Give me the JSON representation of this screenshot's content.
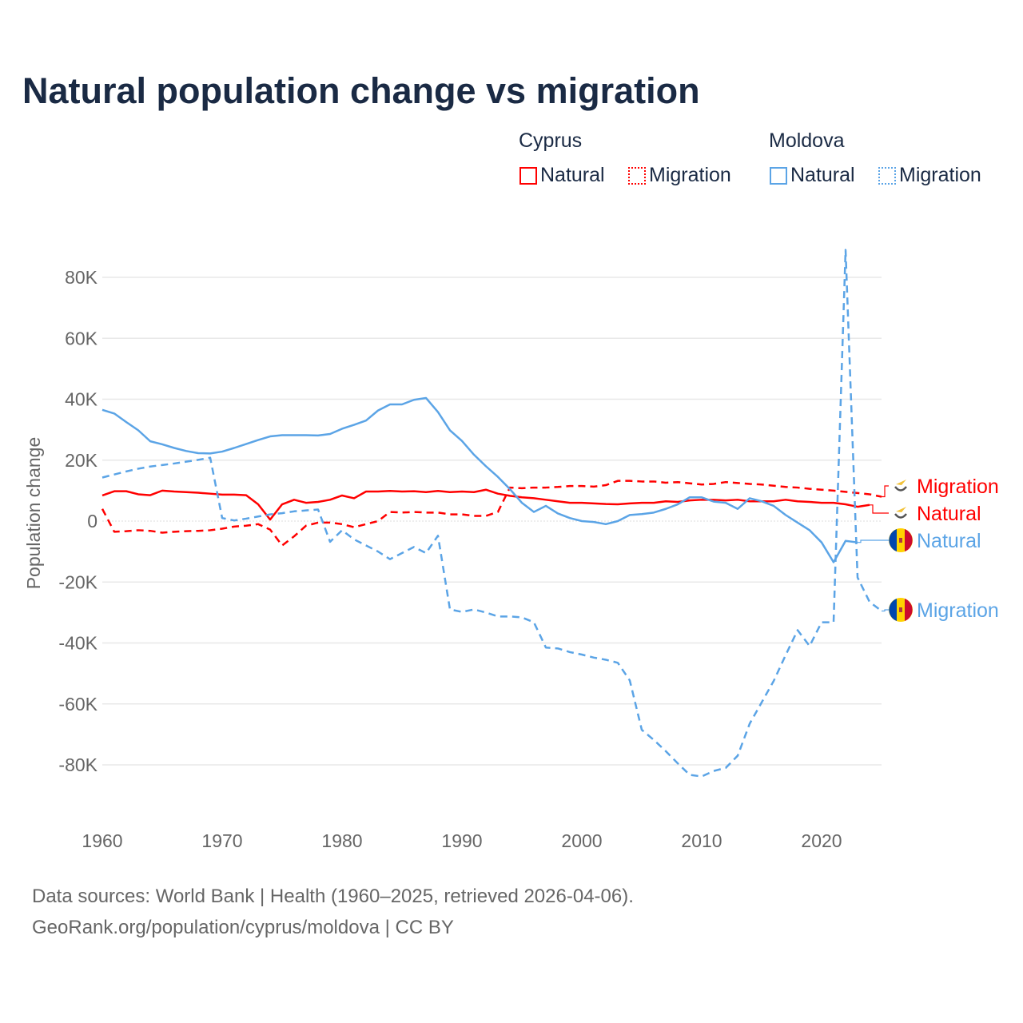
{
  "chart_data": {
    "type": "line",
    "title": "Natural population change vs migration",
    "ylabel": "Population change",
    "xlabel": "",
    "xlim": [
      1960,
      2025
    ],
    "ylim": [
      -100000,
      92000
    ],
    "xticks": [
      1960,
      1970,
      1980,
      1990,
      2000,
      2010,
      2020
    ],
    "xtick_labels": [
      "1960",
      "1970",
      "1980",
      "1990",
      "2000",
      "2010",
      "2020"
    ],
    "yticks": [
      80000,
      60000,
      40000,
      20000,
      0,
      -20000,
      -40000,
      -60000,
      -80000
    ],
    "ytick_labels": [
      "80K",
      "60K",
      "40K",
      "20K",
      "0",
      "-20K",
      "-40K",
      "-60K",
      "-80K"
    ],
    "grid": true,
    "legend": {
      "groups": [
        {
          "name": "Cyprus",
          "items": [
            "Natural",
            "Migration"
          ]
        },
        {
          "name": "Moldova",
          "items": [
            "Natural",
            "Migration"
          ]
        }
      ],
      "position": "top-right"
    },
    "series": [
      {
        "name": "Natural",
        "country": "Cyprus",
        "color": "#ff0000",
        "dash": false,
        "start": 1960,
        "values": [
          8400,
          9800,
          9800,
          8800,
          8500,
          10000,
          9700,
          9500,
          9300,
          9000,
          8700,
          8700,
          8500,
          5500,
          500,
          5500,
          7000,
          6000,
          6300,
          7000,
          8400,
          7500,
          9700,
          9700,
          9900,
          9700,
          9800,
          9500,
          9900,
          9500,
          9700,
          9500,
          10300,
          9000,
          8300,
          7800,
          7500,
          7000,
          6500,
          6000,
          6000,
          5800,
          5600,
          5500,
          5800,
          6000,
          6000,
          6500,
          6300,
          6800,
          7000,
          7000,
          6800,
          7000,
          6500,
          6500,
          6500,
          7000,
          6500,
          6300,
          6000,
          6000,
          5500,
          4700,
          5300
        ]
      },
      {
        "name": "Migration",
        "country": "Cyprus",
        "color": "#ff0000",
        "dash": true,
        "start": 1960,
        "values": [
          4000,
          -3500,
          -3300,
          -3000,
          -3200,
          -3800,
          -3500,
          -3300,
          -3200,
          -3000,
          -2500,
          -1800,
          -1500,
          -1000,
          -2800,
          -8000,
          -5000,
          -1500,
          -500,
          -500,
          -1000,
          -2000,
          -1000,
          0,
          3000,
          2800,
          3000,
          2800,
          2800,
          2200,
          2200,
          1700,
          1700,
          3000,
          11000,
          10800,
          11000,
          11000,
          11200,
          11500,
          11500,
          11300,
          11800,
          13200,
          13200,
          13000,
          13000,
          12600,
          12800,
          12400,
          12000,
          12200,
          12800,
          12500,
          12200,
          12000,
          11600,
          11200,
          11000,
          10600,
          10300,
          10000,
          9600,
          9200,
          8800,
          8000
        ]
      },
      {
        "name": "Natural",
        "country": "Moldova",
        "color": "#5ba4e6",
        "dash": false,
        "start": 1960,
        "values": [
          36500,
          35300,
          32500,
          29800,
          26200,
          25200,
          24000,
          23000,
          22300,
          22200,
          22800,
          24000,
          25300,
          26600,
          27800,
          28200,
          28200,
          28200,
          28100,
          28600,
          30300,
          31600,
          33000,
          36300,
          38300,
          38300,
          39800,
          40400,
          35800,
          29800,
          26300,
          21800,
          18000,
          14500,
          10500,
          6000,
          3000,
          5000,
          2500,
          1000,
          0,
          -300,
          -1000,
          0,
          2000,
          2300,
          2800,
          4000,
          5500,
          7800,
          7800,
          6400,
          6000,
          4000,
          7500,
          6500,
          5000,
          2000,
          -500,
          -3000,
          -7000,
          -13500,
          -6500,
          -7000
        ]
      },
      {
        "name": "Migration",
        "country": "Moldova",
        "color": "#5ba4e6",
        "dash": true,
        "start": 1960,
        "values": [
          14300,
          15300,
          16300,
          17200,
          17900,
          18400,
          18900,
          19500,
          20100,
          20800,
          1000,
          200,
          800,
          1500,
          2200,
          2600,
          3200,
          3500,
          3800,
          -6800,
          -3000,
          -6000,
          -8000,
          -10000,
          -12500,
          -10500,
          -8500,
          -10500,
          -4800,
          -29000,
          -29800,
          -29000,
          -30000,
          -31300,
          -31300,
          -31600,
          -33200,
          -41500,
          -41800,
          -43000,
          -43800,
          -44800,
          -45500,
          -46500,
          -52300,
          -68500,
          -71800,
          -75500,
          -79500,
          -83300,
          -83800,
          -82000,
          -81000,
          -77000,
          -66500,
          -59500,
          -52500,
          -44000,
          -35800,
          -41000,
          -33200,
          -33200,
          89000,
          -18500,
          -26500,
          -29500
        ]
      }
    ],
    "end_labels": [
      {
        "text": "Migration",
        "country": "Cyprus",
        "color": "#ff0000"
      },
      {
        "text": "Natural",
        "country": "Cyprus",
        "color": "#ff0000"
      },
      {
        "text": "Natural",
        "country": "Moldova",
        "color": "#5ba4e6"
      },
      {
        "text": "Migration",
        "country": "Moldova",
        "color": "#5ba4e6"
      }
    ]
  },
  "legend": {
    "cyprus": "Cyprus",
    "moldova": "Moldova",
    "natural": "Natural",
    "migration": "Migration"
  },
  "footer": {
    "line1": "Data sources: World Bank | Health (1960–2025, retrieved 2026-04-06).",
    "line2": "GeoRank.org/population/cyprus/moldova | CC BY"
  }
}
